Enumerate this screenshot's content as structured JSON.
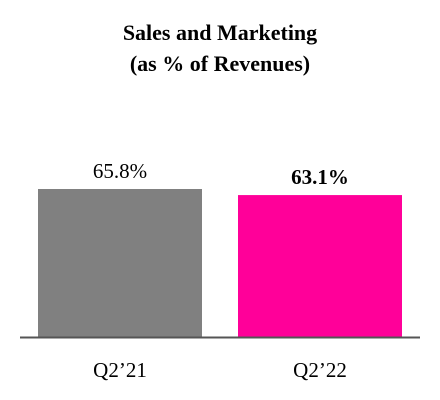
{
  "chart_data": {
    "type": "bar",
    "title": "Sales and Marketing",
    "subtitle": "(as % of Revenues)",
    "categories": [
      "Q2’21",
      "Q2’22"
    ],
    "values": [
      65.8,
      63.1
    ],
    "data_labels": [
      "65.8%",
      "63.1%"
    ],
    "data_label_bold": [
      false,
      true
    ],
    "colors": [
      "#808080",
      "#ff0099"
    ],
    "axis_color": "#555555",
    "ylim": [
      0,
      65.8
    ],
    "xlabel": "",
    "ylabel": "",
    "grid": false,
    "legend": "none"
  }
}
